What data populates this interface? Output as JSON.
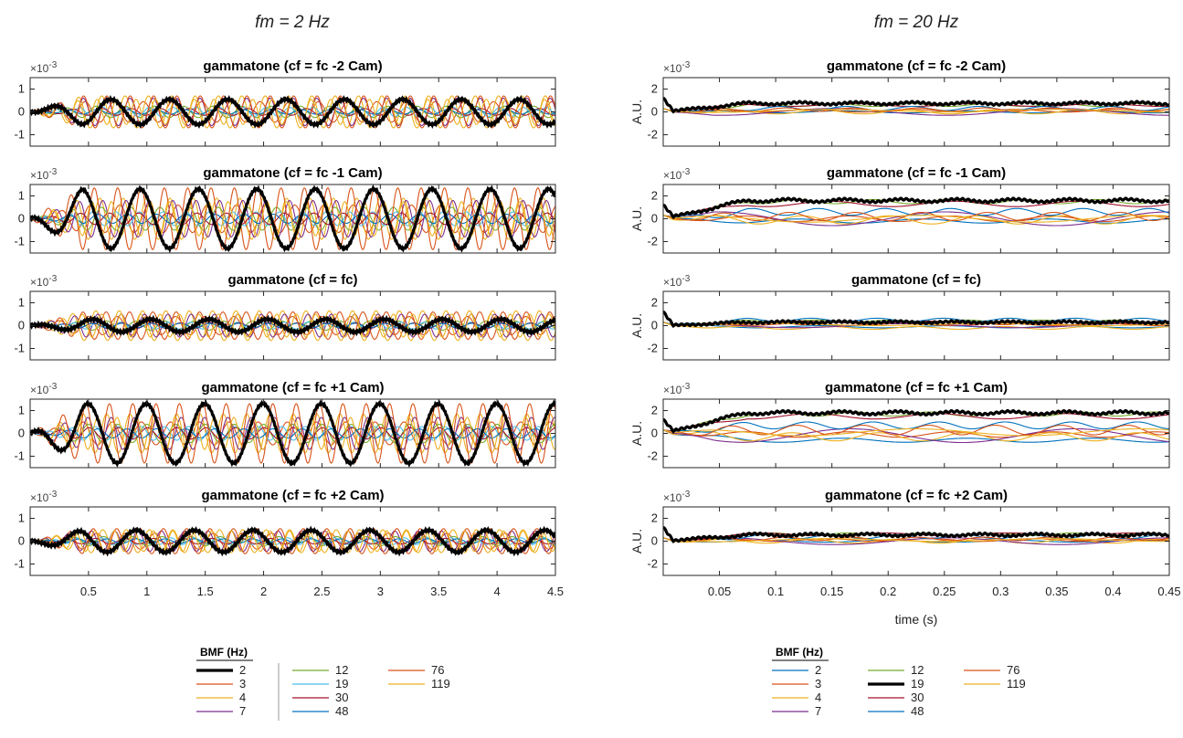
{
  "columns": [
    {
      "title": "fm = 2 Hz"
    },
    {
      "title": "fm = 20 Hz"
    }
  ],
  "chart_data": [
    {
      "type": "line",
      "column": 0,
      "title": "gammatone (cf = fc -2 Cam)",
      "exponent_label": "×10",
      "exponent_power": "-3",
      "ylabel": "",
      "xlim": [
        0,
        4.5
      ],
      "ylim": [
        -1.5,
        1.5
      ],
      "x_ticks": [
        0.5,
        1,
        1.5,
        2,
        2.5,
        3,
        3.5,
        4,
        4.5
      ],
      "x_tick_labels": [],
      "y_ticks": [
        1,
        0,
        -1
      ],
      "y_tick_labels": [
        "1",
        "0",
        "-1"
      ],
      "fm": 2,
      "thick_bmf": "2",
      "amplitudes": {
        "2": 0.55,
        "3": 0.45,
        "4": 0.7,
        "7": 0.6,
        "12": 0.25,
        "19": 0.2,
        "30": 0.15,
        "48": 0.1,
        "76": 0.7,
        "119": 0.55
      },
      "offsets": {}
    },
    {
      "type": "line",
      "column": 0,
      "title": "gammatone (cf = fc -1 Cam)",
      "exponent_label": "×10",
      "exponent_power": "-3",
      "ylabel": "",
      "xlim": [
        0,
        4.5
      ],
      "ylim": [
        -1.5,
        1.5
      ],
      "x_ticks": [
        0.5,
        1,
        1.5,
        2,
        2.5,
        3,
        3.5,
        4,
        4.5
      ],
      "x_tick_labels": [],
      "y_ticks": [
        1,
        0,
        -1
      ],
      "y_tick_labels": [
        "1",
        "0",
        "-1"
      ],
      "fm": 2,
      "thick_bmf": "2",
      "amplitudes": {
        "2": 1.3,
        "3": 0.6,
        "4": 0.9,
        "7": 0.8,
        "12": 0.5,
        "19": 0.3,
        "30": 0.25,
        "48": 0.2,
        "76": 1.35,
        "119": 0.75
      },
      "offsets": {}
    },
    {
      "type": "line",
      "column": 0,
      "title": "gammatone (cf = fc)",
      "exponent_label": "×10",
      "exponent_power": "-3",
      "ylabel": "",
      "xlim": [
        0,
        4.5
      ],
      "ylim": [
        -1.5,
        1.5
      ],
      "x_ticks": [
        0.5,
        1,
        1.5,
        2,
        2.5,
        3,
        3.5,
        4,
        4.5
      ],
      "x_tick_labels": [],
      "y_ticks": [
        1,
        0,
        -1
      ],
      "y_tick_labels": [
        "1",
        "0",
        "-1"
      ],
      "fm": 2,
      "thick_bmf": "2",
      "amplitudes": {
        "2": 0.28,
        "3": 0.4,
        "4": 0.65,
        "7": 0.5,
        "12": 0.2,
        "19": 0.15,
        "30": 0.12,
        "48": 0.1,
        "76": 0.6,
        "119": 0.5
      },
      "offsets": {}
    },
    {
      "type": "line",
      "column": 0,
      "title": "gammatone (cf = fc +1 Cam)",
      "exponent_label": "×10",
      "exponent_power": "-3",
      "ylabel": "",
      "xlim": [
        0,
        4.5
      ],
      "ylim": [
        -1.5,
        1.5
      ],
      "x_ticks": [
        0.5,
        1,
        1.5,
        2,
        2.5,
        3,
        3.5,
        4,
        4.5
      ],
      "x_tick_labels": [],
      "y_ticks": [
        1,
        0,
        -1
      ],
      "y_tick_labels": [
        "1",
        "0",
        "-1"
      ],
      "fm": 2,
      "thick_bmf": "2",
      "amplitudes": {
        "2": 1.3,
        "3": 0.5,
        "4": 0.85,
        "7": 0.7,
        "12": 0.4,
        "19": 0.3,
        "30": 0.25,
        "48": 0.2,
        "76": 1.3,
        "119": 0.7
      },
      "offsets": {}
    },
    {
      "type": "line",
      "column": 0,
      "title": "gammatone (cf = fc +2 Cam)",
      "exponent_label": "×10",
      "exponent_power": "-3",
      "ylabel": "",
      "xlim": [
        0,
        4.5
      ],
      "ylim": [
        -1.5,
        1.5
      ],
      "x_ticks": [
        0.5,
        1,
        1.5,
        2,
        2.5,
        3,
        3.5,
        4,
        4.5
      ],
      "x_tick_labels": [
        "0.5",
        "1",
        "1.5",
        "2",
        "2.5",
        "3",
        "3.5",
        "4",
        "4.5"
      ],
      "y_ticks": [
        1,
        0,
        -1
      ],
      "y_tick_labels": [
        "1",
        "0",
        "-1"
      ],
      "fm": 2,
      "thick_bmf": "2",
      "amplitudes": {
        "2": 0.48,
        "3": 0.35,
        "4": 0.5,
        "7": 0.45,
        "12": 0.2,
        "19": 0.15,
        "30": 0.12,
        "48": 0.1,
        "76": 0.55,
        "119": 0.45
      },
      "offsets": {}
    },
    {
      "type": "line",
      "column": 1,
      "title": "gammatone (cf = fc -2 Cam)",
      "exponent_label": "×10",
      "exponent_power": "-3",
      "ylabel": "A.U.",
      "xlim": [
        0,
        0.45
      ],
      "ylim": [
        -3,
        3
      ],
      "x_ticks": [
        0.05,
        0.1,
        0.15,
        0.2,
        0.25,
        0.3,
        0.35,
        0.4,
        0.45
      ],
      "x_tick_labels": [],
      "y_ticks": [
        2,
        0,
        -2
      ],
      "y_tick_labels": [
        "2",
        "0",
        "-2"
      ],
      "fm": 20,
      "thick_bmf": "19",
      "amplitudes": {
        "2": 0.15,
        "3": 0.2,
        "4": 0.3,
        "7": 0.5,
        "12": 0.2,
        "19": 0.15,
        "30": 0.2,
        "48": 0.3,
        "76": 0.25,
        "119": 0.2
      },
      "offsets": {
        "2": 0.0,
        "3": 0.1,
        "4": 0.0,
        "7": 0.0,
        "12": 0.6,
        "19": 0.75,
        "30": 0.6,
        "48": 0.3,
        "76": 0.2,
        "119": 0.1
      }
    },
    {
      "type": "line",
      "column": 1,
      "title": "gammatone (cf = fc -1 Cam)",
      "exponent_label": "×10",
      "exponent_power": "-3",
      "ylabel": "A.U.",
      "xlim": [
        0,
        0.45
      ],
      "ylim": [
        -3,
        3
      ],
      "x_ticks": [
        0.05,
        0.1,
        0.15,
        0.2,
        0.25,
        0.3,
        0.35,
        0.4,
        0.45
      ],
      "x_tick_labels": [],
      "y_ticks": [
        2,
        0,
        -2
      ],
      "y_tick_labels": [
        "2",
        "0",
        "-2"
      ],
      "fm": 20,
      "thick_bmf": "19",
      "amplitudes": {
        "2": 0.3,
        "3": 0.4,
        "4": 0.6,
        "7": 1.0,
        "12": 0.3,
        "19": 0.2,
        "30": 0.4,
        "48": 0.5,
        "76": 0.6,
        "119": 0.5
      },
      "offsets": {
        "2": -0.2,
        "3": 0.0,
        "4": -0.1,
        "7": 0.0,
        "12": 1.5,
        "19": 1.6,
        "30": 1.3,
        "48": 0.6,
        "76": 0.2,
        "119": 0.0
      }
    },
    {
      "type": "line",
      "column": 1,
      "title": "gammatone (cf = fc)",
      "exponent_label": "×10",
      "exponent_power": "-3",
      "ylabel": "A.U.",
      "xlim": [
        0,
        0.45
      ],
      "ylim": [
        -3,
        3
      ],
      "x_ticks": [
        0.05,
        0.1,
        0.15,
        0.2,
        0.25,
        0.3,
        0.35,
        0.4,
        0.45
      ],
      "x_tick_labels": [],
      "y_ticks": [
        2,
        0,
        -2
      ],
      "y_tick_labels": [
        "2",
        "0",
        "-2"
      ],
      "fm": 20,
      "thick_bmf": "19",
      "amplitudes": {
        "2": 0.15,
        "3": 0.15,
        "4": 0.2,
        "7": 0.3,
        "12": 0.15,
        "19": 0.1,
        "30": 0.15,
        "48": 0.25,
        "76": 0.2,
        "119": 0.15
      },
      "offsets": {
        "2": -0.1,
        "3": 0.1,
        "4": -0.2,
        "7": 0.0,
        "12": 0.4,
        "19": 0.3,
        "30": 0.3,
        "48": 0.5,
        "76": 0.2,
        "119": 0.1
      }
    },
    {
      "type": "line",
      "column": 1,
      "title": "gammatone (cf = fc +1 Cam)",
      "exponent_label": "×10",
      "exponent_power": "-3",
      "ylabel": "A.U.",
      "xlim": [
        0,
        0.45
      ],
      "ylim": [
        -3,
        3
      ],
      "x_ticks": [
        0.05,
        0.1,
        0.15,
        0.2,
        0.25,
        0.3,
        0.35,
        0.4,
        0.45
      ],
      "x_tick_labels": [],
      "y_ticks": [
        2,
        0,
        -2
      ],
      "y_tick_labels": [
        "2",
        "0",
        "-2"
      ],
      "fm": 20,
      "thick_bmf": "19",
      "amplitudes": {
        "2": 0.3,
        "3": 0.4,
        "4": 0.6,
        "7": 1.0,
        "12": 0.3,
        "19": 0.2,
        "30": 0.4,
        "48": 0.5,
        "76": 0.7,
        "119": 0.5
      },
      "offsets": {
        "2": -0.6,
        "3": -0.1,
        "4": -0.3,
        "7": -0.2,
        "12": 1.7,
        "19": 1.8,
        "30": 1.5,
        "48": 0.7,
        "76": 0.3,
        "119": 0.1
      }
    },
    {
      "type": "line",
      "column": 1,
      "title": "gammatone (cf = fc +2 Cam)",
      "exponent_label": "×10",
      "exponent_power": "-3",
      "ylabel": "A.U.",
      "xlim": [
        0,
        0.45
      ],
      "ylim": [
        -3,
        3
      ],
      "x_ticks": [
        0.05,
        0.1,
        0.15,
        0.2,
        0.25,
        0.3,
        0.35,
        0.4,
        0.45
      ],
      "x_tick_labels": [
        "0.05",
        "0.1",
        "0.15",
        "0.2",
        "0.25",
        "0.3",
        "0.35",
        "0.4",
        "0.45"
      ],
      "y_ticks": [
        2,
        0,
        -2
      ],
      "y_tick_labels": [
        "2",
        "0",
        "-2"
      ],
      "fm": 20,
      "thick_bmf": "19",
      "amplitudes": {
        "2": 0.15,
        "3": 0.2,
        "4": 0.3,
        "7": 0.5,
        "12": 0.2,
        "19": 0.15,
        "30": 0.2,
        "48": 0.3,
        "76": 0.25,
        "119": 0.2
      },
      "offsets": {
        "2": 0.0,
        "3": 0.1,
        "4": 0.0,
        "7": 0.0,
        "12": 0.6,
        "19": 0.55,
        "30": 0.6,
        "48": 0.4,
        "76": 0.2,
        "119": 0.1
      }
    }
  ],
  "xlabel_right": "time (s)",
  "series_colors": {
    "2": "#0072BD",
    "3": "#D95319",
    "4": "#EDB120",
    "7": "#7E2F8E",
    "12": "#77AC30",
    "19": "#4DBEEE",
    "30": "#A2142F",
    "48": "#0072BD",
    "76": "#D95319",
    "119": "#EDB120"
  },
  "thick_color": "#000000",
  "legends": [
    {
      "title": "BMF (Hz)",
      "thick": "2",
      "columns": [
        [
          "2",
          "3",
          "4",
          "7"
        ],
        [
          "12",
          "19",
          "30",
          "48"
        ],
        [
          "76",
          "119"
        ]
      ]
    },
    {
      "title": "BMF (Hz)",
      "thick": "19",
      "columns": [
        [
          "2",
          "3",
          "4",
          "7"
        ],
        [
          "12",
          "19",
          "30",
          "48"
        ],
        [
          "76",
          "119"
        ]
      ]
    }
  ]
}
